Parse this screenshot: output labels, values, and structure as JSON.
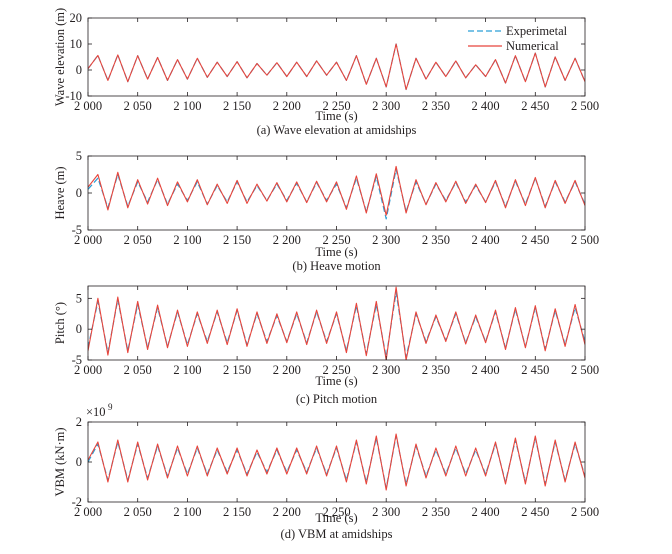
{
  "chart_data": [
    {
      "type": "line",
      "caption": "(a) Wave elevation at amidships",
      "xlabel": "Time (s)",
      "ylabel": "Wave elevation (m)",
      "xlim": [
        2000,
        2500
      ],
      "ylim": [
        -10,
        20
      ],
      "xticks": [
        "2 000",
        "2 050",
        "2 100",
        "2 150",
        "2 200",
        "2 250",
        "2 300",
        "2 350",
        "2 400",
        "2 450",
        "2 500"
      ],
      "yticks": [
        "20",
        "10",
        "0",
        "-10"
      ],
      "legend": {
        "placement": "top-right",
        "entries": [
          "Experimetal",
          "Numerical"
        ]
      },
      "series": [
        {
          "name": "Experimetal",
          "color": "#2b9fd6",
          "style": "dashed",
          "x": [
            2000,
            2010,
            2020,
            2030,
            2040,
            2050,
            2060,
            2070,
            2080,
            2090,
            2100,
            2110,
            2120,
            2130,
            2140,
            2150,
            2160,
            2170,
            2180,
            2190,
            2200,
            2210,
            2220,
            2230,
            2240,
            2250,
            2260,
            2270,
            2280,
            2290,
            2300,
            2310,
            2320,
            2330,
            2340,
            2350,
            2360,
            2370,
            2380,
            2390,
            2400,
            2410,
            2420,
            2430,
            2440,
            2450,
            2460,
            2470,
            2480,
            2490,
            2500
          ],
          "y": [
            0.5,
            5.6,
            -4.0,
            5.8,
            -4.5,
            5.5,
            -3.5,
            4.8,
            -4.0,
            4.0,
            -3.5,
            4.5,
            -2.8,
            3.0,
            -2.5,
            3.2,
            -3.0,
            2.5,
            -2.0,
            2.8,
            -2.5,
            3.0,
            -2.5,
            3.5,
            -2.0,
            3.0,
            -4.0,
            5.5,
            -5.5,
            4.5,
            -6.5,
            10.0,
            -7.5,
            4.5,
            -3.5,
            3.0,
            -2.5,
            3.5,
            -3.0,
            2.0,
            -2.5,
            4.0,
            -5.0,
            5.5,
            -4.5,
            6.5,
            -6.5,
            5.0,
            -4.0,
            4.5,
            -4.5
          ]
        },
        {
          "name": "Numerical",
          "color": "#e8453c",
          "style": "solid",
          "x": [
            2000,
            2010,
            2020,
            2030,
            2040,
            2050,
            2060,
            2070,
            2080,
            2090,
            2100,
            2110,
            2120,
            2130,
            2140,
            2150,
            2160,
            2170,
            2180,
            2190,
            2200,
            2210,
            2220,
            2230,
            2240,
            2250,
            2260,
            2270,
            2280,
            2290,
            2300,
            2310,
            2320,
            2330,
            2340,
            2350,
            2360,
            2370,
            2380,
            2390,
            2400,
            2410,
            2420,
            2430,
            2440,
            2450,
            2460,
            2470,
            2480,
            2490,
            2500
          ],
          "y": [
            0.5,
            5.6,
            -4.0,
            5.8,
            -4.5,
            5.5,
            -3.5,
            4.8,
            -4.0,
            4.0,
            -3.5,
            4.5,
            -2.8,
            3.0,
            -2.5,
            3.2,
            -3.0,
            2.5,
            -2.0,
            2.8,
            -2.5,
            3.0,
            -2.5,
            3.5,
            -2.0,
            3.0,
            -4.0,
            5.5,
            -5.5,
            4.5,
            -6.5,
            10.0,
            -7.5,
            4.5,
            -3.5,
            3.0,
            -2.5,
            3.5,
            -3.0,
            2.0,
            -2.5,
            4.0,
            -5.0,
            5.5,
            -4.5,
            6.5,
            -6.5,
            5.0,
            -4.0,
            4.5,
            -4.5
          ]
        }
      ]
    },
    {
      "type": "line",
      "caption": "(b) Heave motion",
      "xlabel": "Time (s)",
      "ylabel": "Heave (m)",
      "xlim": [
        2000,
        2500
      ],
      "ylim": [
        -5,
        5
      ],
      "xticks": [
        "2 000",
        "2 050",
        "2 100",
        "2 150",
        "2 200",
        "2 250",
        "2 300",
        "2 350",
        "2 400",
        "2 450",
        "2 500"
      ],
      "yticks": [
        "5",
        "0",
        "-5"
      ],
      "series": [
        {
          "name": "Experimetal",
          "color": "#2b9fd6",
          "style": "dashed",
          "x": [
            2000,
            2010,
            2020,
            2030,
            2040,
            2050,
            2060,
            2070,
            2080,
            2090,
            2100,
            2110,
            2120,
            2130,
            2140,
            2150,
            2160,
            2170,
            2180,
            2190,
            2200,
            2210,
            2220,
            2230,
            2240,
            2250,
            2260,
            2270,
            2280,
            2290,
            2300,
            2310,
            2320,
            2330,
            2340,
            2350,
            2360,
            2370,
            2380,
            2390,
            2400,
            2410,
            2420,
            2430,
            2440,
            2450,
            2460,
            2470,
            2480,
            2490,
            2500
          ],
          "y": [
            0.5,
            2.0,
            -2.0,
            2.5,
            -1.8,
            1.5,
            -1.2,
            1.8,
            -1.5,
            1.2,
            -1.0,
            1.5,
            -1.5,
            1.0,
            -1.2,
            1.5,
            -1.2,
            1.0,
            -1.0,
            1.2,
            -1.0,
            1.3,
            -1.2,
            1.4,
            -1.0,
            1.2,
            -2.0,
            2.0,
            -2.5,
            2.2,
            -3.5,
            3.2,
            -2.5,
            1.5,
            -1.5,
            1.2,
            -1.0,
            1.4,
            -1.2,
            1.0,
            -1.2,
            1.5,
            -1.8,
            1.6,
            -1.5,
            2.0,
            -1.8,
            1.5,
            -1.2,
            1.5,
            -1.5
          ]
        },
        {
          "name": "Numerical",
          "color": "#e8453c",
          "style": "solid",
          "x": [
            2000,
            2010,
            2020,
            2030,
            2040,
            2050,
            2060,
            2070,
            2080,
            2090,
            2100,
            2110,
            2120,
            2130,
            2140,
            2150,
            2160,
            2170,
            2180,
            2190,
            2200,
            2210,
            2220,
            2230,
            2240,
            2250,
            2260,
            2270,
            2280,
            2290,
            2300,
            2310,
            2320,
            2330,
            2340,
            2350,
            2360,
            2370,
            2380,
            2390,
            2400,
            2410,
            2420,
            2430,
            2440,
            2450,
            2460,
            2470,
            2480,
            2490,
            2500
          ],
          "y": [
            0.8,
            2.5,
            -2.3,
            2.8,
            -2.0,
            1.8,
            -1.5,
            2.0,
            -1.7,
            1.5,
            -1.2,
            1.8,
            -1.6,
            1.2,
            -1.4,
            1.7,
            -1.4,
            1.2,
            -1.1,
            1.4,
            -1.2,
            1.5,
            -1.3,
            1.6,
            -1.2,
            1.5,
            -2.2,
            2.3,
            -2.7,
            2.6,
            -3.0,
            3.6,
            -2.7,
            1.8,
            -1.6,
            1.4,
            -1.2,
            1.6,
            -1.4,
            1.2,
            -1.3,
            1.7,
            -2.0,
            1.8,
            -1.7,
            2.1,
            -2.0,
            1.7,
            -1.4,
            1.7,
            -1.7
          ]
        }
      ]
    },
    {
      "type": "line",
      "caption": "(c) Pitch motion",
      "xlabel": "Time (s)",
      "ylabel": "Pitch (°)",
      "xlim": [
        2000,
        2500
      ],
      "ylim": [
        -5,
        7
      ],
      "xticks": [
        "2 000",
        "2 050",
        "2 100",
        "2 150",
        "2 200",
        "2 250",
        "2 300",
        "2 350",
        "2 400",
        "2 450",
        "2 500"
      ],
      "yticks": [
        "5",
        "0",
        "-5"
      ],
      "series": [
        {
          "name": "Experimetal",
          "color": "#2b9fd6",
          "style": "dashed",
          "x": [
            2000,
            2010,
            2020,
            2030,
            2040,
            2050,
            2060,
            2070,
            2080,
            2090,
            2100,
            2110,
            2120,
            2130,
            2140,
            2150,
            2160,
            2170,
            2180,
            2190,
            2200,
            2210,
            2220,
            2230,
            2240,
            2250,
            2260,
            2270,
            2280,
            2290,
            2300,
            2310,
            2320,
            2330,
            2340,
            2350,
            2360,
            2370,
            2380,
            2390,
            2400,
            2410,
            2420,
            2430,
            2440,
            2450,
            2460,
            2470,
            2480,
            2490,
            2500
          ],
          "y": [
            -3.0,
            4.5,
            -3.8,
            4.8,
            -3.5,
            4.0,
            -3.0,
            3.5,
            -2.8,
            2.8,
            -2.5,
            2.5,
            -2.0,
            2.8,
            -2.2,
            3.0,
            -2.5,
            2.5,
            -2.0,
            2.2,
            -2.0,
            2.5,
            -2.2,
            2.8,
            -2.0,
            2.5,
            -3.5,
            3.8,
            -4.0,
            4.0,
            -4.5,
            6.0,
            -4.5,
            2.5,
            -2.0,
            2.0,
            -1.8,
            2.5,
            -2.2,
            2.0,
            -2.0,
            2.8,
            -3.0,
            3.2,
            -2.8,
            3.5,
            -3.2,
            3.0,
            -2.5,
            3.5,
            -2.0
          ]
        },
        {
          "name": "Numerical",
          "color": "#e8453c",
          "style": "solid",
          "x": [
            2000,
            2010,
            2020,
            2030,
            2040,
            2050,
            2060,
            2070,
            2080,
            2090,
            2100,
            2110,
            2120,
            2130,
            2140,
            2150,
            2160,
            2170,
            2180,
            2190,
            2200,
            2210,
            2220,
            2230,
            2240,
            2250,
            2260,
            2270,
            2280,
            2290,
            2300,
            2310,
            2320,
            2330,
            2340,
            2350,
            2360,
            2370,
            2380,
            2390,
            2400,
            2410,
            2420,
            2430,
            2440,
            2450,
            2460,
            2470,
            2480,
            2490,
            2500
          ],
          "y": [
            -3.5,
            5.0,
            -4.2,
            5.2,
            -3.8,
            4.5,
            -3.3,
            3.9,
            -3.0,
            3.1,
            -2.8,
            2.8,
            -2.3,
            3.1,
            -2.5,
            3.3,
            -2.8,
            2.8,
            -2.3,
            2.5,
            -2.2,
            2.8,
            -2.5,
            3.1,
            -2.3,
            2.8,
            -3.8,
            4.2,
            -4.3,
            4.5,
            -5.0,
            6.8,
            -5.0,
            2.8,
            -2.3,
            2.3,
            -2.0,
            2.8,
            -2.4,
            2.3,
            -2.2,
            3.1,
            -3.3,
            3.5,
            -3.0,
            3.8,
            -3.5,
            3.3,
            -2.8,
            4.0,
            -2.5
          ]
        }
      ]
    },
    {
      "type": "line",
      "caption": "(d) VBM at amidships",
      "xlabel": "Time (s)",
      "ylabel": "VBM (kN·m)",
      "multiplier": "×10",
      "exponent": "9",
      "xlim": [
        2000,
        2500
      ],
      "ylim": [
        -2,
        2
      ],
      "xticks": [
        "2 000",
        "2 050",
        "2 100",
        "2 150",
        "2 200",
        "2 250",
        "2 300",
        "2 350",
        "2 400",
        "2 450",
        "2 500"
      ],
      "yticks": [
        "2",
        "0",
        "-2"
      ],
      "series": [
        {
          "name": "Experimetal",
          "color": "#2b9fd6",
          "style": "dashed",
          "x": [
            2000,
            2010,
            2020,
            2030,
            2040,
            2050,
            2060,
            2070,
            2080,
            2090,
            2100,
            2110,
            2120,
            2130,
            2140,
            2150,
            2160,
            2170,
            2180,
            2190,
            2200,
            2210,
            2220,
            2230,
            2240,
            2250,
            2260,
            2270,
            2280,
            2290,
            2300,
            2310,
            2320,
            2330,
            2340,
            2350,
            2360,
            2370,
            2380,
            2390,
            2400,
            2410,
            2420,
            2430,
            2440,
            2450,
            2460,
            2470,
            2480,
            2490,
            2500
          ],
          "y": [
            0.0,
            0.9,
            -0.9,
            1.0,
            -0.9,
            0.9,
            -0.8,
            0.8,
            -0.7,
            0.7,
            -0.6,
            0.7,
            -0.6,
            0.6,
            -0.5,
            0.6,
            -0.6,
            0.5,
            -0.5,
            0.6,
            -0.5,
            0.6,
            -0.5,
            0.7,
            -0.6,
            0.7,
            -0.9,
            1.0,
            -1.0,
            1.2,
            -1.3,
            1.3,
            -1.1,
            0.8,
            -0.7,
            0.6,
            -0.6,
            0.7,
            -0.6,
            0.6,
            -0.6,
            0.9,
            -1.0,
            1.1,
            -1.0,
            1.2,
            -1.1,
            1.0,
            -0.9,
            0.9,
            -0.7
          ]
        },
        {
          "name": "Numerical",
          "color": "#e8453c",
          "style": "solid",
          "x": [
            2000,
            2010,
            2020,
            2030,
            2040,
            2050,
            2060,
            2070,
            2080,
            2090,
            2100,
            2110,
            2120,
            2130,
            2140,
            2150,
            2160,
            2170,
            2180,
            2190,
            2200,
            2210,
            2220,
            2230,
            2240,
            2250,
            2260,
            2270,
            2280,
            2290,
            2300,
            2310,
            2320,
            2330,
            2340,
            2350,
            2360,
            2370,
            2380,
            2390,
            2400,
            2410,
            2420,
            2430,
            2440,
            2450,
            2460,
            2470,
            2480,
            2490,
            2500
          ],
          "y": [
            0.1,
            1.0,
            -1.0,
            1.1,
            -1.0,
            1.0,
            -0.9,
            0.9,
            -0.8,
            0.8,
            -0.7,
            0.8,
            -0.7,
            0.7,
            -0.6,
            0.7,
            -0.7,
            0.6,
            -0.6,
            0.7,
            -0.6,
            0.7,
            -0.6,
            0.8,
            -0.7,
            0.8,
            -1.0,
            1.1,
            -1.1,
            1.3,
            -1.4,
            1.4,
            -1.2,
            0.9,
            -0.8,
            0.7,
            -0.7,
            0.8,
            -0.7,
            0.7,
            -0.7,
            1.0,
            -1.1,
            1.2,
            -1.1,
            1.3,
            -1.2,
            1.1,
            -1.0,
            1.0,
            -0.8
          ]
        }
      ]
    }
  ]
}
